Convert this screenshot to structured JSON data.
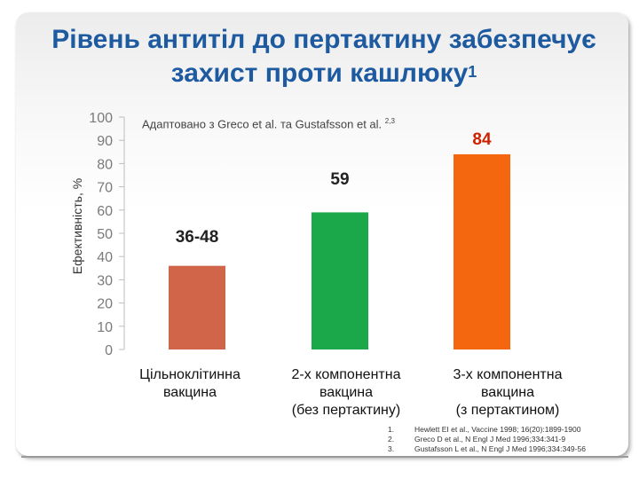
{
  "title": {
    "line1": "Рівень антитіл до пертактину забезпечує",
    "line2": "захист проти кашлюку",
    "superscript": "1"
  },
  "subtitle": {
    "text": "Адаптовано з Greco et al. та Gustafsson et al.",
    "superscript": "2,3"
  },
  "chart_data": {
    "type": "bar",
    "ylabel": "Ефективність, %",
    "ylim": [
      0,
      100
    ],
    "yticks": [
      0,
      10,
      20,
      30,
      40,
      50,
      60,
      70,
      80,
      90,
      100
    ],
    "categories": [
      [
        "Цільноклітинна",
        "вакцина"
      ],
      [
        "2-х компонентна",
        "вакцина",
        "(без пертактину)"
      ],
      [
        "3-х компонентна",
        "вакцина",
        "(з пертактином)"
      ]
    ],
    "values": [
      36,
      59,
      84
    ],
    "data_labels": [
      "36-48",
      "59",
      "84"
    ],
    "colors": [
      "#d0654a",
      "#1ba84a",
      "#f4670e"
    ],
    "label_colors": [
      "#222222",
      "#222222",
      "#cc2200"
    ]
  },
  "references": [
    {
      "num": "1.",
      "text": "Hewlett EI et al., Vaccine 1998; 16(20):1899-1900"
    },
    {
      "num": "2.",
      "text": "Greco D et al., N Engl J Med 1996;334:341-9"
    },
    {
      "num": "3.",
      "text": "Gustafsson L et al., N Engl J Med 1996;334:349-56"
    }
  ]
}
